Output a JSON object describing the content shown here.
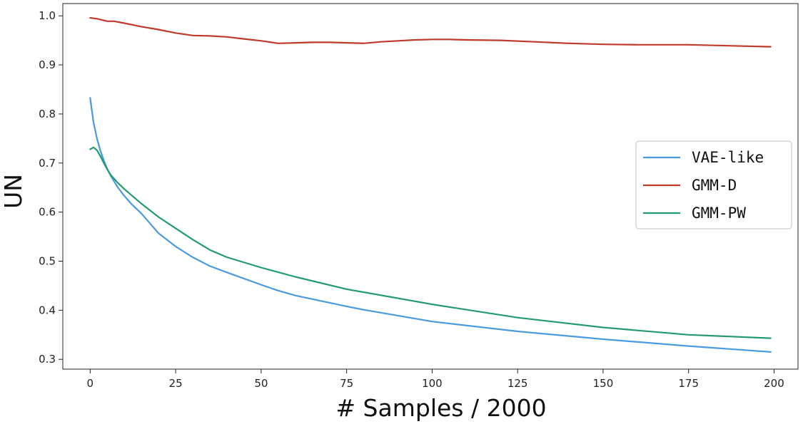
{
  "chart_data": {
    "type": "line",
    "title": "",
    "xlabel": "# Samples / 2000",
    "ylabel": "UN",
    "xlim": [
      -8,
      207
    ],
    "ylim": [
      0.28,
      1.025
    ],
    "xticks": [
      0,
      25,
      50,
      75,
      100,
      125,
      150,
      175,
      200
    ],
    "yticks": [
      0.3,
      0.4,
      0.5,
      0.6,
      0.7,
      0.8,
      0.9,
      1.0
    ],
    "xtick_labels": [
      "0",
      "25",
      "50",
      "75",
      "100",
      "125",
      "150",
      "175",
      "200"
    ],
    "ytick_labels": [
      "0.3",
      "0.4",
      "0.5",
      "0.6",
      "0.7",
      "0.8",
      "0.9",
      "1.0"
    ],
    "grid": false,
    "legend_position": "center-right",
    "series": [
      {
        "name": "VAE-like",
        "color": "#4a9ae0",
        "x": [
          0,
          1,
          2,
          3,
          4,
          5,
          6,
          8,
          10,
          12,
          15,
          20,
          25,
          30,
          35,
          40,
          50,
          55,
          60,
          75,
          80,
          100,
          125,
          150,
          175,
          199
        ],
        "y": [
          0.833,
          0.782,
          0.75,
          0.725,
          0.705,
          0.688,
          0.674,
          0.651,
          0.633,
          0.617,
          0.597,
          0.557,
          0.53,
          0.508,
          0.49,
          0.477,
          0.452,
          0.44,
          0.43,
          0.408,
          0.401,
          0.377,
          0.357,
          0.341,
          0.327,
          0.315
        ]
      },
      {
        "name": "GMM-D",
        "color": "#c03a2b",
        "x": [
          0,
          2,
          5,
          7,
          10,
          15,
          20,
          25,
          30,
          35,
          40,
          45,
          50,
          55,
          60,
          65,
          70,
          75,
          80,
          85,
          90,
          95,
          100,
          105,
          110,
          120,
          130,
          140,
          150,
          160,
          175,
          199
        ],
        "y": [
          0.996,
          0.994,
          0.989,
          0.989,
          0.985,
          0.978,
          0.972,
          0.965,
          0.96,
          0.959,
          0.957,
          0.953,
          0.949,
          0.944,
          0.945,
          0.946,
          0.946,
          0.945,
          0.944,
          0.947,
          0.949,
          0.951,
          0.952,
          0.952,
          0.951,
          0.95,
          0.947,
          0.944,
          0.942,
          0.941,
          0.941,
          0.937
        ]
      },
      {
        "name": "GMM-PW",
        "color": "#229a6e",
        "x": [
          0,
          1,
          2,
          3,
          4,
          5,
          6,
          8,
          10,
          12,
          15,
          20,
          25,
          30,
          35,
          40,
          50,
          60,
          75,
          100,
          125,
          150,
          175,
          199
        ],
        "y": [
          0.728,
          0.732,
          0.726,
          0.714,
          0.7,
          0.687,
          0.676,
          0.66,
          0.647,
          0.635,
          0.617,
          0.59,
          0.567,
          0.544,
          0.523,
          0.508,
          0.487,
          0.468,
          0.443,
          0.412,
          0.385,
          0.365,
          0.35,
          0.343
        ]
      }
    ]
  }
}
